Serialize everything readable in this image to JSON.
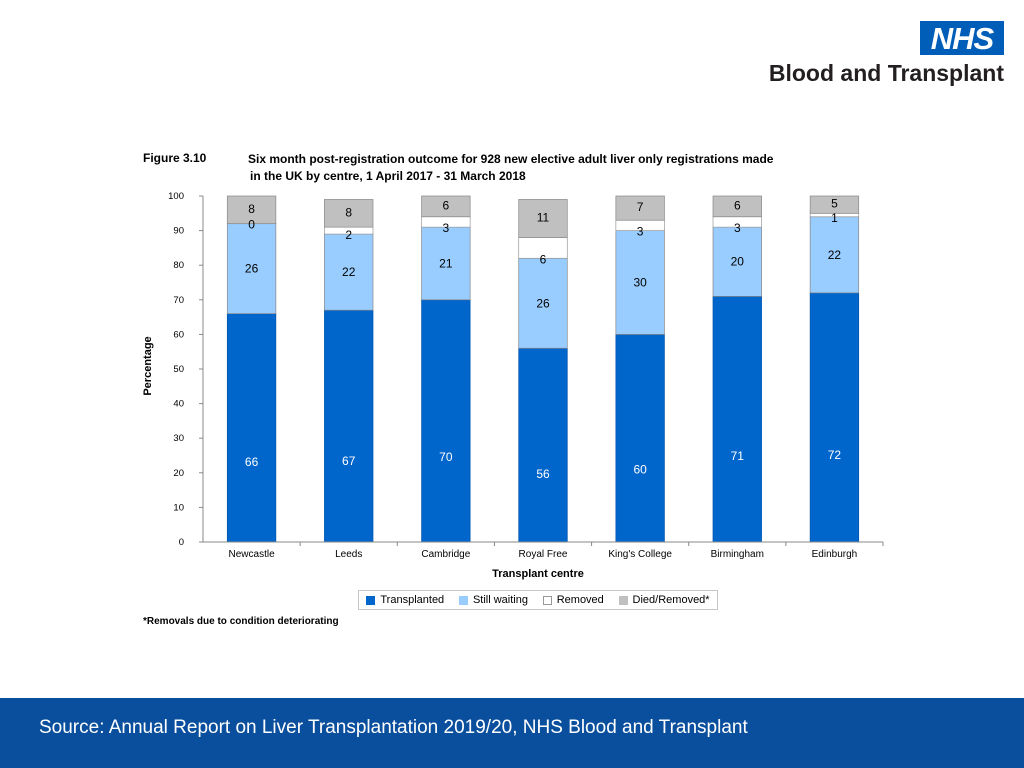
{
  "header": {
    "logo_text": "NHS",
    "org_name": "Blood and Transplant"
  },
  "figure": {
    "number": "Figure 3.10",
    "title_line1": "Six month post-registration outcome for 928 new elective adult liver only registrations made",
    "title_line2": "in the UK by centre, 1 April 2017 - 31 March 2018",
    "footnote": "*Removals due to condition deteriorating"
  },
  "legend": {
    "items": [
      {
        "label": "Transplanted",
        "color": "#0066cc"
      },
      {
        "label": "Still waiting",
        "color": "#99ccff"
      },
      {
        "label": "Removed",
        "color": "#ffffff"
      },
      {
        "label": "Died/Removed*",
        "color": "#c0c0c0"
      }
    ]
  },
  "chart_data": {
    "type": "bar",
    "stacked": true,
    "title": "Six month post-registration outcome for 928 new elective adult liver only registrations made in the UK by centre, 1 April 2017 - 31 March 2018",
    "xlabel": "Transplant centre",
    "ylabel": "Percentage",
    "ylim": [
      0,
      100
    ],
    "yticks": [
      0,
      10,
      20,
      30,
      40,
      50,
      60,
      70,
      80,
      90,
      100
    ],
    "categories": [
      "Newcastle",
      "Leeds",
      "Cambridge",
      "Royal Free",
      "King's College",
      "Birmingham",
      "Edinburgh"
    ],
    "series": [
      {
        "name": "Transplanted",
        "color": "#0066cc",
        "values": [
          66,
          67,
          70,
          56,
          60,
          71,
          72
        ]
      },
      {
        "name": "Still waiting",
        "color": "#99ccff",
        "values": [
          26,
          22,
          21,
          26,
          30,
          20,
          22
        ]
      },
      {
        "name": "Removed",
        "color": "#ffffff",
        "values": [
          0,
          2,
          3,
          6,
          3,
          3,
          1
        ]
      },
      {
        "name": "Died/Removed*",
        "color": "#c0c0c0",
        "values": [
          8,
          8,
          6,
          11,
          7,
          6,
          5
        ]
      }
    ],
    "labels": [
      [
        "66",
        "26",
        "0",
        "8"
      ],
      [
        "67",
        "22",
        "2",
        "8"
      ],
      [
        "70",
        "21",
        "3",
        "6"
      ],
      [
        "56",
        "26",
        "6",
        "11"
      ],
      [
        "60",
        "30",
        "3",
        "7"
      ],
      [
        "71",
        "20",
        "3",
        "6"
      ],
      [
        "72",
        "22",
        "1",
        "5"
      ]
    ]
  },
  "footer": {
    "source": "Source: Annual Report on Liver Transplantation 2019/20, NHS Blood and Transplant"
  }
}
